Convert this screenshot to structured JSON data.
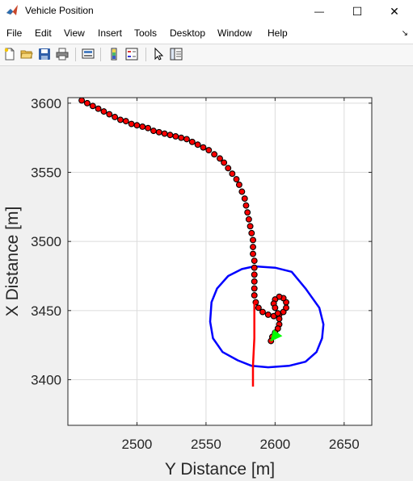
{
  "window": {
    "title": "Vehicle Position",
    "minimize_glyph": "—",
    "maximize_glyph": "☐",
    "close_glyph": "✕"
  },
  "menu": {
    "items": [
      "File",
      "Edit",
      "View",
      "Insert",
      "Tools",
      "Desktop",
      "Window",
      "Help"
    ],
    "dock_glyph": "↘"
  },
  "toolbar": {
    "buttons": [
      "new-figure-icon",
      "open-file-icon",
      "save-icon",
      "print-icon",
      "link-plot-icon",
      "colorbar-icon",
      "legend-icon",
      "edit-plot-icon",
      "property-inspector-icon"
    ]
  },
  "colors": {
    "trajectory_marker_edge": "#000000",
    "trajectory_marker_fill": "#ff0000",
    "reference_line": "#ff0000",
    "boundary_circle": "#0000ff",
    "vehicle_marker": "#00ff00",
    "axes_background": "#ffffff",
    "figure_background": "#f0f0f0"
  },
  "chart_data": {
    "type": "line",
    "title": "",
    "xlabel": "Y Distance [m]",
    "ylabel": "X Distance [m]",
    "xlim": [
      2450,
      2670
    ],
    "ylim": [
      3367,
      3604
    ],
    "xticks": [
      2500,
      2550,
      2600,
      2650
    ],
    "yticks": [
      3400,
      3450,
      3500,
      3550,
      3600
    ],
    "grid": true,
    "series": [
      {
        "kind": "markers",
        "marker": "circle",
        "points": [
          [
            2460,
            3602
          ],
          [
            2464,
            3600
          ],
          [
            2468,
            3598
          ],
          [
            2472,
            3596
          ],
          [
            2476,
            3594
          ],
          [
            2480,
            3592
          ],
          [
            2484,
            3590
          ],
          [
            2488,
            3588
          ],
          [
            2492,
            3587
          ],
          [
            2496,
            3585
          ],
          [
            2500,
            3584
          ],
          [
            2504,
            3583
          ],
          [
            2508,
            3582
          ],
          [
            2512,
            3580
          ],
          [
            2516,
            3579
          ],
          [
            2520,
            3578
          ],
          [
            2524,
            3577
          ],
          [
            2528,
            3576
          ],
          [
            2532,
            3575
          ],
          [
            2536,
            3574
          ],
          [
            2540,
            3572
          ],
          [
            2544,
            3570
          ],
          [
            2548,
            3568
          ],
          [
            2552,
            3566
          ],
          [
            2556,
            3563
          ],
          [
            2560,
            3560
          ],
          [
            2563,
            3557
          ],
          [
            2566,
            3553
          ],
          [
            2569,
            3549
          ],
          [
            2572,
            3545
          ],
          [
            2574,
            3541
          ],
          [
            2576,
            3536
          ],
          [
            2578,
            3531
          ],
          [
            2579,
            3526
          ],
          [
            2580,
            3521
          ],
          [
            2581,
            3516
          ],
          [
            2582,
            3511
          ],
          [
            2583,
            3506
          ],
          [
            2584,
            3501
          ],
          [
            2584,
            3496
          ],
          [
            2584,
            3491
          ],
          [
            2585,
            3486
          ],
          [
            2585,
            3481
          ],
          [
            2585,
            3476
          ],
          [
            2585,
            3471
          ],
          [
            2585,
            3466
          ],
          [
            2585,
            3461
          ],
          [
            2586,
            3456
          ],
          [
            2588,
            3452
          ],
          [
            2591,
            3449
          ],
          [
            2595,
            3447
          ],
          [
            2599,
            3446
          ],
          [
            2603,
            3447
          ],
          [
            2606,
            3449
          ],
          [
            2608,
            3452
          ],
          [
            2608,
            3456
          ],
          [
            2606,
            3459
          ],
          [
            2603,
            3460
          ],
          [
            2600,
            3458
          ],
          [
            2599,
            3455
          ],
          [
            2600,
            3452
          ],
          [
            2602,
            3448
          ],
          [
            2603,
            3444
          ],
          [
            2603,
            3440
          ],
          [
            2602,
            3437
          ],
          [
            2600,
            3434
          ],
          [
            2598,
            3431
          ],
          [
            2597,
            3428
          ]
        ]
      },
      {
        "kind": "line",
        "points": [
          [
            2585,
            3456
          ],
          [
            2585,
            3430
          ],
          [
            2584,
            3410
          ],
          [
            2584,
            3395
          ]
        ]
      },
      {
        "kind": "closed-curve",
        "points": [
          [
            2585,
            3482
          ],
          [
            2600,
            3481
          ],
          [
            2612,
            3478
          ],
          [
            2622,
            3466
          ],
          [
            2632,
            3452
          ],
          [
            2635,
            3440
          ],
          [
            2634,
            3430
          ],
          [
            2630,
            3420
          ],
          [
            2622,
            3413
          ],
          [
            2610,
            3410
          ],
          [
            2595,
            3409
          ],
          [
            2583,
            3410
          ],
          [
            2573,
            3414
          ],
          [
            2562,
            3420
          ],
          [
            2555,
            3430
          ],
          [
            2553,
            3442
          ],
          [
            2554,
            3456
          ],
          [
            2558,
            3466
          ],
          [
            2566,
            3475
          ],
          [
            2576,
            3480
          ],
          [
            2585,
            3482
          ]
        ]
      },
      {
        "kind": "vehicle",
        "marker": "triangle",
        "points": [
          [
            2600,
            3431
          ]
        ]
      }
    ]
  }
}
